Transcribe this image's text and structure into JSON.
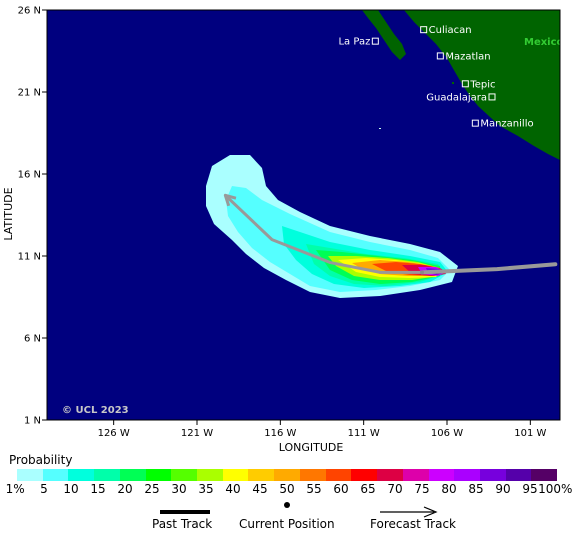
{
  "axes": {
    "xlabel": "LONGITUDE",
    "ylabel": "LATITUDE",
    "lat_ticks": [
      "26 N",
      "21 N",
      "16 N",
      "11 N",
      "6 N",
      "1 N"
    ],
    "lon_ticks": [
      "126 W",
      "121 W",
      "116 W",
      "111 W",
      "106 W",
      "101 W"
    ]
  },
  "map": {
    "ocean_color": "#00007f",
    "land_color": "#006400",
    "country_label": "Mexico",
    "watermark": "© UCL 2023",
    "cities": [
      {
        "name": "Culiacan",
        "lat": 24.8,
        "lon": 107.4
      },
      {
        "name": "La Paz",
        "lat": 24.1,
        "lon": 110.3
      },
      {
        "name": "Mazatlan",
        "lat": 23.2,
        "lon": 106.4
      },
      {
        "name": "Tepic",
        "lat": 21.5,
        "lon": 104.9
      },
      {
        "name": "Guadalajara",
        "lat": 20.7,
        "lon": 103.3
      },
      {
        "name": "Manzanillo",
        "lat": 19.1,
        "lon": 104.3
      }
    ]
  },
  "legend": {
    "title": "Probability",
    "labels": [
      "1%",
      "5",
      "10",
      "15",
      "20",
      "25",
      "30",
      "35",
      "40",
      "45",
      "50",
      "55",
      "60",
      "65",
      "70",
      "75",
      "80",
      "85",
      "90",
      "95",
      "100%"
    ],
    "colors": [
      "#aaffff",
      "#55ffff",
      "#00ffdd",
      "#00ffaa",
      "#00ff55",
      "#00ff00",
      "#55ff00",
      "#aaff00",
      "#ffff00",
      "#ffcc00",
      "#ffaa00",
      "#ff7700",
      "#ff4400",
      "#ff0000",
      "#dd0044",
      "#dd00aa",
      "#cc00ff",
      "#aa00ff",
      "#7700dd",
      "#5500aa",
      "#550066"
    ]
  },
  "track_legend": {
    "past": "Past Track",
    "current": "Current Position",
    "forecast": "Forecast Track"
  },
  "track": {
    "current_position": {
      "lat": 10.0,
      "lon": 107.5
    },
    "forecast_path": [
      {
        "lat": 10.0,
        "lon": 107.5
      },
      {
        "lat": 10.0,
        "lon": 110.0
      },
      {
        "lat": 10.6,
        "lon": 113.0
      },
      {
        "lat": 12.0,
        "lon": 116.5
      },
      {
        "lat": 14.7,
        "lon": 119.3
      }
    ],
    "past_path": [
      {
        "lat": 10.0,
        "lon": 107.5
      },
      {
        "lat": 10.2,
        "lon": 103.0
      },
      {
        "lat": 10.5,
        "lon": 99.5
      }
    ]
  }
}
